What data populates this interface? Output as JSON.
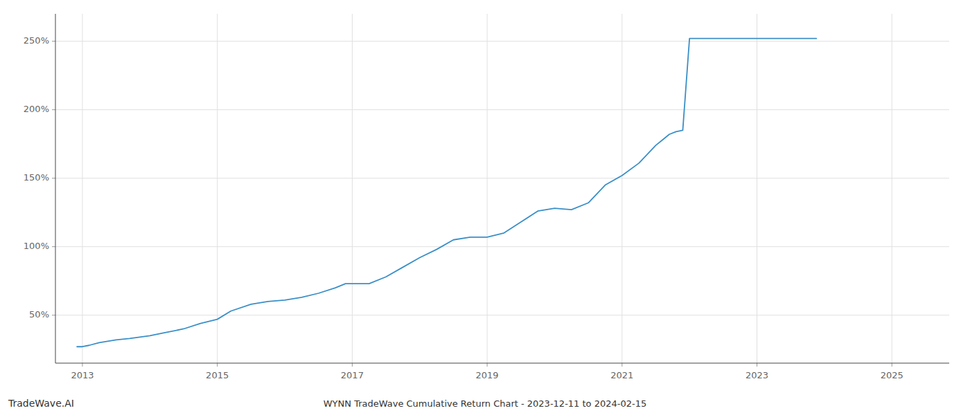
{
  "chart_data": {
    "type": "line",
    "title": "WYNN TradeWave Cumulative Return Chart - 2023-12-11 to 2024-02-15",
    "annotations": [
      "TradeWave.AI"
    ],
    "color": "#3a8fc8",
    "grid": true,
    "x": [
      2012.92,
      2013.0,
      2013.1,
      2013.25,
      2013.5,
      2013.7,
      2014.0,
      2014.2,
      2014.5,
      2014.75,
      2015.0,
      2015.2,
      2015.5,
      2015.75,
      2016.0,
      2016.25,
      2016.5,
      2016.75,
      2016.9,
      2017.0,
      2017.1,
      2017.25,
      2017.5,
      2017.75,
      2018.0,
      2018.25,
      2018.5,
      2018.75,
      2019.0,
      2019.25,
      2019.5,
      2019.75,
      2020.0,
      2020.25,
      2020.5,
      2020.75,
      2021.0,
      2021.25,
      2021.5,
      2021.6,
      2021.7,
      2021.8,
      2021.9,
      2022.0,
      2022.05,
      2022.1,
      2022.3,
      2022.5,
      2022.75,
      2023.0,
      2023.25,
      2023.5,
      2023.75,
      2023.88
    ],
    "values": [
      27,
      27,
      28,
      30,
      32,
      33,
      35,
      37,
      40,
      44,
      47,
      53,
      58,
      60,
      61,
      63,
      66,
      70,
      73,
      73,
      73,
      73,
      78,
      85,
      92,
      98,
      105,
      107,
      107,
      110,
      118,
      126,
      128,
      127,
      132,
      145,
      152,
      161,
      174,
      178,
      182,
      184,
      185,
      252,
      252,
      252,
      252,
      252,
      252,
      252,
      252,
      252,
      252,
      252
    ],
    "xlim": [
      2012.6,
      2025.85
    ],
    "xticks": [
      2013,
      2015,
      2017,
      2019,
      2021,
      2023,
      2025
    ],
    "ylim": [
      15,
      270
    ],
    "yticks": [
      {
        "value": 50,
        "label": "50%"
      },
      {
        "value": 100,
        "label": "100%"
      },
      {
        "value": 150,
        "label": "150%"
      },
      {
        "value": 200,
        "label": "200%"
      },
      {
        "value": 250,
        "label": "250%"
      }
    ]
  }
}
